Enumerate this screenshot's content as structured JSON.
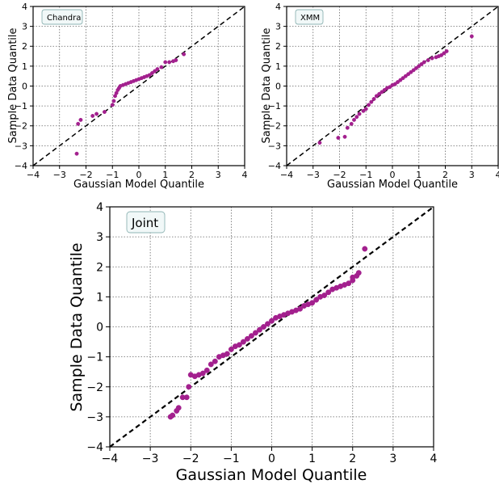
{
  "colors": {
    "points": "#a3208e",
    "reference_line": "#000000",
    "legend_fill": "#f1f8f8",
    "legend_stroke": "#8fb4b4"
  },
  "chart_data": [
    {
      "type": "scatter",
      "label": "Chandra",
      "xlabel": "Gaussian Model Quantile",
      "ylabel": "Sample Data Quantile",
      "xlim": [
        -4,
        4
      ],
      "ylim": [
        -4,
        4
      ],
      "xticks": [
        "−4",
        "−3",
        "−2",
        "−1",
        "0",
        "1",
        "2",
        "3",
        "4"
      ],
      "yticks": [
        "−4",
        "−3",
        "−2",
        "−1",
        "0",
        "1",
        "2",
        "3",
        "4"
      ],
      "grid": true,
      "reference_line": "y = x",
      "points": [
        [
          -2.35,
          -3.4
        ],
        [
          -2.3,
          -1.9
        ],
        [
          -2.2,
          -1.7
        ],
        [
          -1.75,
          -1.5
        ],
        [
          -1.6,
          -1.4
        ],
        [
          -1.3,
          -1.3
        ],
        [
          -1.0,
          -0.95
        ],
        [
          -0.95,
          -0.75
        ],
        [
          -0.9,
          -0.5
        ],
        [
          -0.85,
          -0.35
        ],
        [
          -0.8,
          -0.2
        ],
        [
          -0.75,
          -0.1
        ],
        [
          -0.7,
          0.0
        ],
        [
          -0.6,
          0.05
        ],
        [
          -0.5,
          0.1
        ],
        [
          -0.4,
          0.15
        ],
        [
          -0.3,
          0.2
        ],
        [
          -0.2,
          0.25
        ],
        [
          -0.1,
          0.3
        ],
        [
          0.0,
          0.35
        ],
        [
          0.1,
          0.4
        ],
        [
          0.2,
          0.45
        ],
        [
          0.3,
          0.5
        ],
        [
          0.4,
          0.55
        ],
        [
          0.5,
          0.65
        ],
        [
          0.6,
          0.75
        ],
        [
          0.7,
          0.85
        ],
        [
          0.85,
          0.95
        ],
        [
          1.0,
          1.2
        ],
        [
          1.15,
          1.2
        ],
        [
          1.3,
          1.25
        ],
        [
          1.4,
          1.3
        ],
        [
          1.7,
          1.6
        ]
      ]
    },
    {
      "type": "scatter",
      "label": "XMM",
      "xlabel": "Gaussian Model Quantile",
      "ylabel": "Sample Data Quantile",
      "xlim": [
        -4,
        4
      ],
      "ylim": [
        -4,
        4
      ],
      "xticks": [
        "−4",
        "−3",
        "−2",
        "−1",
        "0",
        "1",
        "2",
        "3",
        "4"
      ],
      "yticks": [
        "−4",
        "−3",
        "−2",
        "−1",
        "0",
        "1",
        "2",
        "3",
        "4"
      ],
      "grid": true,
      "reference_line": "y = x",
      "points": [
        [
          -2.75,
          -2.85
        ],
        [
          -2.05,
          -2.6
        ],
        [
          -1.8,
          -2.55
        ],
        [
          -1.7,
          -2.1
        ],
        [
          -1.55,
          -1.9
        ],
        [
          -1.45,
          -1.7
        ],
        [
          -1.35,
          -1.55
        ],
        [
          -1.25,
          -1.4
        ],
        [
          -1.1,
          -1.25
        ],
        [
          -1.0,
          -1.15
        ],
        [
          -0.9,
          -0.95
        ],
        [
          -0.8,
          -0.8
        ],
        [
          -0.7,
          -0.65
        ],
        [
          -0.6,
          -0.5
        ],
        [
          -0.5,
          -0.4
        ],
        [
          -0.4,
          -0.3
        ],
        [
          -0.3,
          -0.2
        ],
        [
          -0.2,
          -0.1
        ],
        [
          -0.1,
          -0.05
        ],
        [
          0.0,
          0.05
        ],
        [
          0.1,
          0.1
        ],
        [
          0.2,
          0.2
        ],
        [
          0.3,
          0.3
        ],
        [
          0.4,
          0.4
        ],
        [
          0.5,
          0.5
        ],
        [
          0.6,
          0.6
        ],
        [
          0.7,
          0.7
        ],
        [
          0.8,
          0.8
        ],
        [
          0.9,
          0.9
        ],
        [
          1.0,
          1.0
        ],
        [
          1.1,
          1.1
        ],
        [
          1.2,
          1.2
        ],
        [
          1.35,
          1.3
        ],
        [
          1.5,
          1.4
        ],
        [
          1.65,
          1.45
        ],
        [
          1.75,
          1.5
        ],
        [
          1.85,
          1.55
        ],
        [
          1.95,
          1.65
        ],
        [
          2.05,
          1.75
        ],
        [
          3.0,
          2.5
        ]
      ]
    },
    {
      "type": "scatter",
      "label": "Joint",
      "xlabel": "Gaussian Model Quantile",
      "ylabel": "Sample Data Quantile",
      "xlim": [
        -4,
        4
      ],
      "ylim": [
        -4,
        4
      ],
      "xticks": [
        "−4",
        "−3",
        "−2",
        "−1",
        "0",
        "1",
        "2",
        "3",
        "4"
      ],
      "yticks": [
        "−4",
        "−3",
        "−2",
        "−1",
        "0",
        "1",
        "2",
        "3",
        "4"
      ],
      "grid": true,
      "reference_line": "y = x",
      "points": [
        [
          -2.5,
          -3.0
        ],
        [
          -2.45,
          -2.95
        ],
        [
          -2.35,
          -2.8
        ],
        [
          -2.3,
          -2.7
        ],
        [
          -2.2,
          -2.35
        ],
        [
          -2.1,
          -2.35
        ],
        [
          -2.05,
          -2.0
        ],
        [
          -2.0,
          -1.6
        ],
        [
          -1.9,
          -1.65
        ],
        [
          -1.8,
          -1.6
        ],
        [
          -1.7,
          -1.55
        ],
        [
          -1.6,
          -1.45
        ],
        [
          -1.5,
          -1.25
        ],
        [
          -1.4,
          -1.15
        ],
        [
          -1.3,
          -1.0
        ],
        [
          -1.2,
          -0.95
        ],
        [
          -1.1,
          -0.9
        ],
        [
          -1.0,
          -0.75
        ],
        [
          -0.9,
          -0.65
        ],
        [
          -0.8,
          -0.6
        ],
        [
          -0.7,
          -0.5
        ],
        [
          -0.6,
          -0.4
        ],
        [
          -0.5,
          -0.3
        ],
        [
          -0.4,
          -0.2
        ],
        [
          -0.3,
          -0.1
        ],
        [
          -0.2,
          0.0
        ],
        [
          -0.1,
          0.1
        ],
        [
          0.0,
          0.2
        ],
        [
          0.1,
          0.3
        ],
        [
          0.2,
          0.35
        ],
        [
          0.3,
          0.4
        ],
        [
          0.4,
          0.45
        ],
        [
          0.5,
          0.5
        ],
        [
          0.6,
          0.55
        ],
        [
          0.7,
          0.6
        ],
        [
          0.8,
          0.7
        ],
        [
          0.9,
          0.75
        ],
        [
          1.0,
          0.8
        ],
        [
          1.1,
          0.9
        ],
        [
          1.2,
          1.0
        ],
        [
          1.3,
          1.05
        ],
        [
          1.4,
          1.15
        ],
        [
          1.5,
          1.25
        ],
        [
          1.6,
          1.3
        ],
        [
          1.7,
          1.35
        ],
        [
          1.8,
          1.4
        ],
        [
          1.9,
          1.45
        ],
        [
          2.0,
          1.55
        ],
        [
          2.0,
          1.65
        ],
        [
          2.1,
          1.7
        ],
        [
          2.15,
          1.8
        ],
        [
          2.3,
          2.6
        ]
      ]
    }
  ]
}
